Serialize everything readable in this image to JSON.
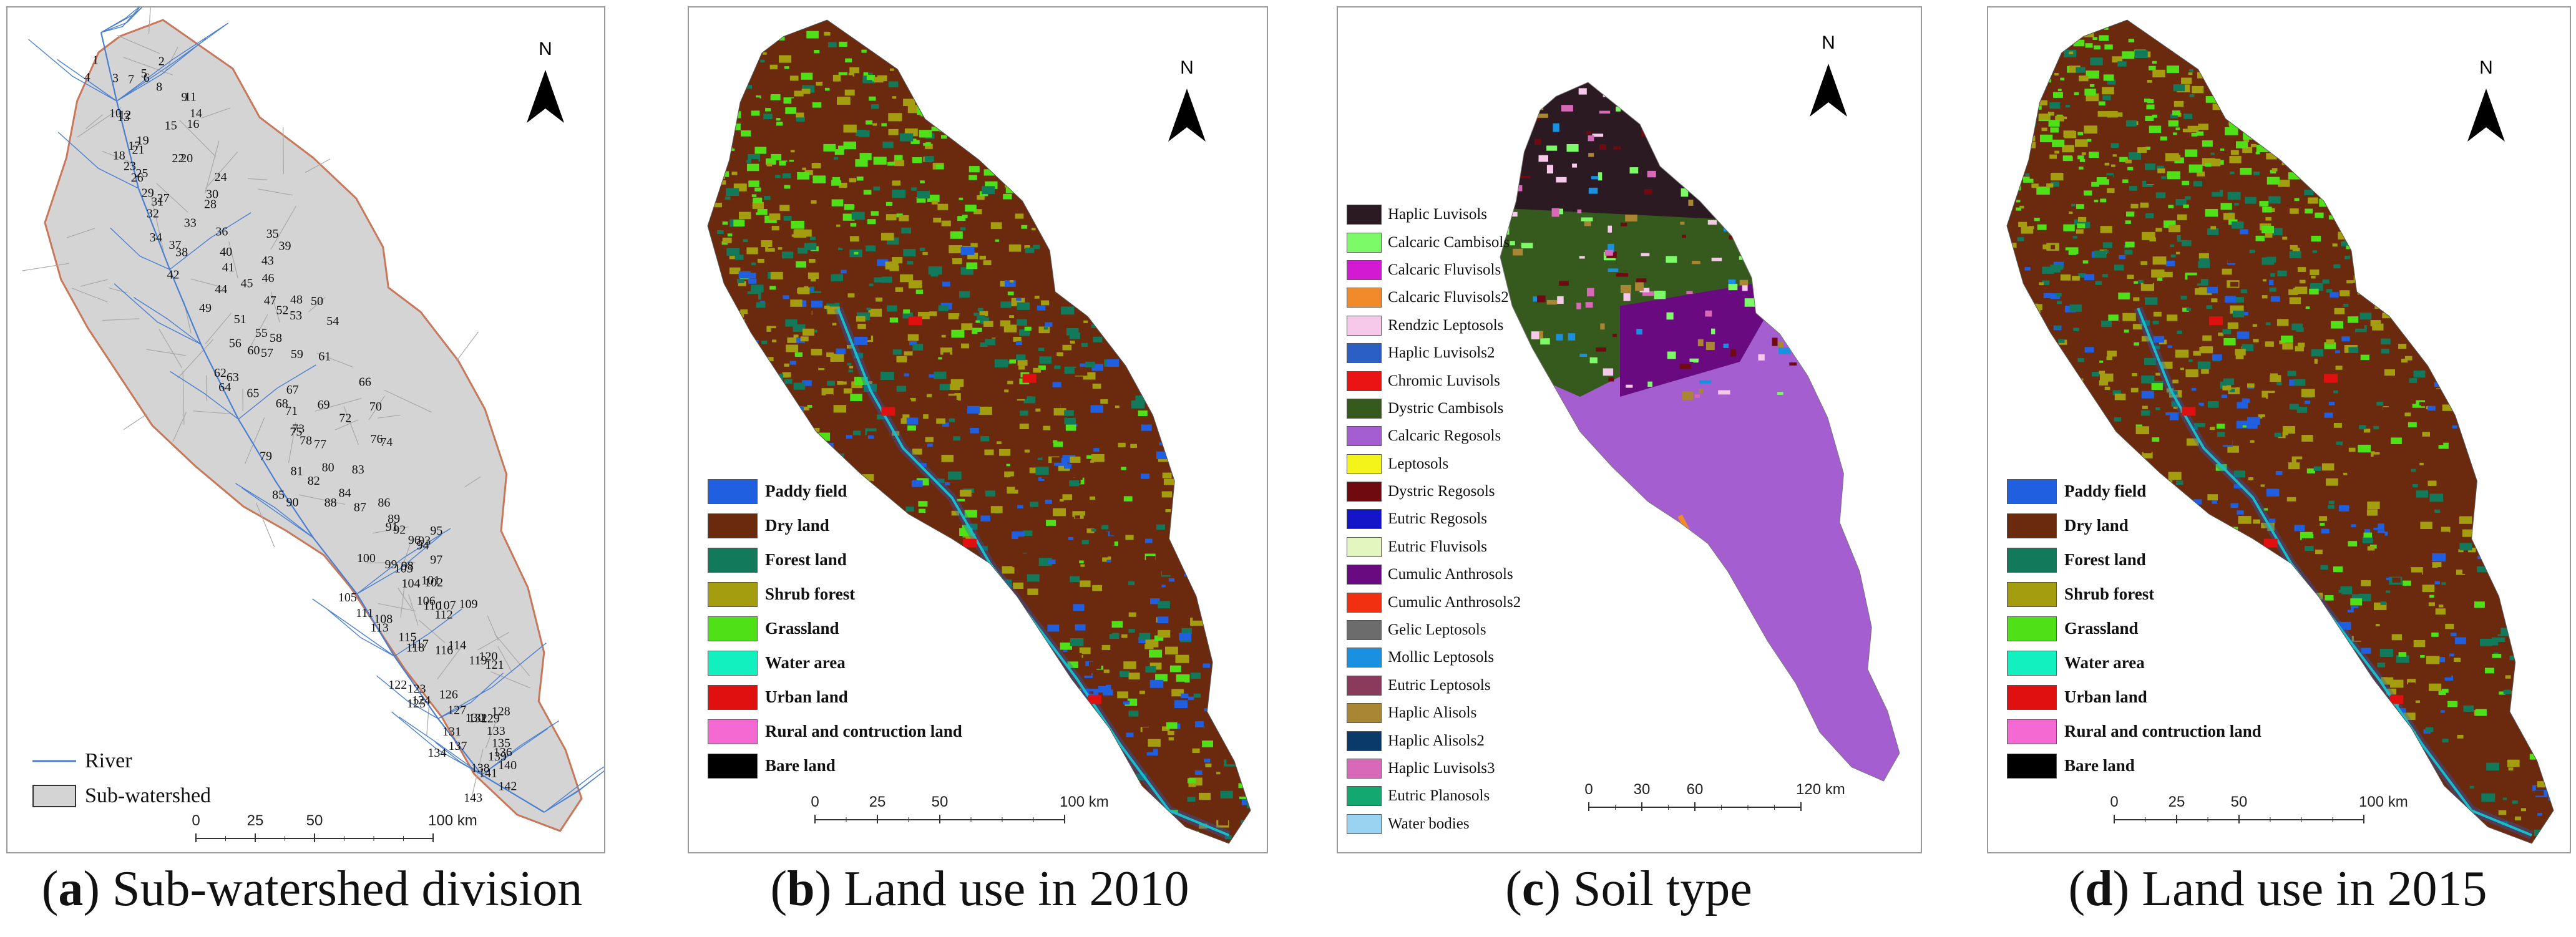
{
  "panels": [
    {
      "id": "a",
      "letter": "a",
      "title": "Sub-watershed division"
    },
    {
      "id": "b",
      "letter": "b",
      "title": "Land use in 2010"
    },
    {
      "id": "c",
      "letter": "c",
      "title": "Soil type"
    },
    {
      "id": "d",
      "letter": "d",
      "title": "Land use in 2015"
    }
  ],
  "north_label": "N",
  "panel_a": {
    "legend": {
      "river": "River",
      "subwatershed": "Sub-watershed"
    },
    "colors": {
      "fill": "#d4d4d4",
      "boundary": "#c8775a",
      "river": "#4a7fd0"
    },
    "scalebar": {
      "ticks": [
        "0",
        "25",
        "50",
        "100 km"
      ]
    },
    "subwatershed_ids": [
      "1",
      "2",
      "3",
      "4",
      "5",
      "6",
      "7",
      "8",
      "9",
      "10",
      "11",
      "12",
      "13",
      "14",
      "15",
      "16",
      "17",
      "18",
      "19",
      "20",
      "21",
      "22",
      "23",
      "24",
      "25",
      "26",
      "27",
      "28",
      "29",
      "30",
      "31",
      "32",
      "33",
      "34",
      "35",
      "36",
      "37",
      "38",
      "39",
      "40",
      "41",
      "42",
      "43",
      "44",
      "45",
      "46",
      "47",
      "48",
      "49",
      "50",
      "51",
      "52",
      "53",
      "54",
      "55",
      "56",
      "57",
      "58",
      "59",
      "60",
      "61",
      "62",
      "63",
      "64",
      "65",
      "66",
      "67",
      "68",
      "69",
      "70",
      "71",
      "72",
      "73",
      "74",
      "75",
      "76",
      "77",
      "78",
      "79",
      "80",
      "81",
      "82",
      "83",
      "84",
      "85",
      "86",
      "87",
      "88",
      "89",
      "90",
      "91",
      "92",
      "93",
      "94",
      "95",
      "96",
      "97",
      "98",
      "99",
      "100",
      "101",
      "102",
      "103",
      "104",
      "105",
      "106",
      "107",
      "108",
      "109",
      "110",
      "111",
      "112",
      "113",
      "114",
      "115",
      "116",
      "117",
      "118",
      "119",
      "120",
      "121",
      "122",
      "123",
      "124",
      "125",
      "126",
      "127",
      "128",
      "129",
      "130",
      "131",
      "132",
      "133",
      "134",
      "135",
      "136",
      "137",
      "138",
      "139",
      "140",
      "141",
      "142",
      "143"
    ]
  },
  "land_use_legend": [
    {
      "label": "Paddy field",
      "color": "#1f5fe0"
    },
    {
      "label": "Dry land",
      "color": "#6b2a0e"
    },
    {
      "label": "Forest land",
      "color": "#127a5a"
    },
    {
      "label": "Shrub forest",
      "color": "#a59d10"
    },
    {
      "label": "Grassland",
      "color": "#4fe018"
    },
    {
      "label": "Water area",
      "color": "#12f0c0"
    },
    {
      "label": "Urban land",
      "color": "#e01010"
    },
    {
      "label": "Rural and contruction land",
      "color": "#f46ad2"
    },
    {
      "label": "Bare land",
      "color": "#000000"
    }
  ],
  "land_use_scalebar": {
    "ticks": [
      "0",
      "25",
      "50",
      "100 km"
    ]
  },
  "soil_legend": [
    {
      "label": "Haplic Luvisols",
      "color": "#2b1a22"
    },
    {
      "label": "Calcaric Cambisols",
      "color": "#7dfa68"
    },
    {
      "label": "Calcaric Fluvisols",
      "color": "#d21ad2"
    },
    {
      "label": "Calcaric Fluvisols2",
      "color": "#f08a2a"
    },
    {
      "label": "Rendzic Leptosols",
      "color": "#f6c8ea"
    },
    {
      "label": "Haplic Luvisols2",
      "color": "#2c5fc4"
    },
    {
      "label": "Chromic Luvisols",
      "color": "#ea1414"
    },
    {
      "label": "Dystric Cambisols",
      "color": "#365a1e"
    },
    {
      "label": "Calcaric Regosols",
      "color": "#a45ed0"
    },
    {
      "label": "Leptosols",
      "color": "#f4f41a"
    },
    {
      "label": "Dystric Regosols",
      "color": "#6e0a10"
    },
    {
      "label": "Eutric Regosols",
      "color": "#1414c8"
    },
    {
      "label": "Eutric Fluvisols",
      "color": "#e4f6c0"
    },
    {
      "label": "Cumulic Anthrosols",
      "color": "#6a0a80"
    },
    {
      "label": "Cumulic Anthrosols2",
      "color": "#f03010"
    },
    {
      "label": "Gelic Leptosols",
      "color": "#6c6c6c"
    },
    {
      "label": "Mollic Leptosols",
      "color": "#1a90e0"
    },
    {
      "label": "Eutric Leptosols",
      "color": "#8a3a5a"
    },
    {
      "label": "Haplic Alisols",
      "color": "#a88634"
    },
    {
      "label": "Haplic Alisols2",
      "color": "#0a3a6a"
    },
    {
      "label": "Haplic Luvisols3",
      "color": "#d868b8"
    },
    {
      "label": "Eutric Planosols",
      "color": "#12a870"
    },
    {
      "label": "Water bodies",
      "color": "#9ad2f2"
    }
  ],
  "soil_scalebar": {
    "ticks": [
      "0",
      "30",
      "60",
      "120 km"
    ]
  }
}
